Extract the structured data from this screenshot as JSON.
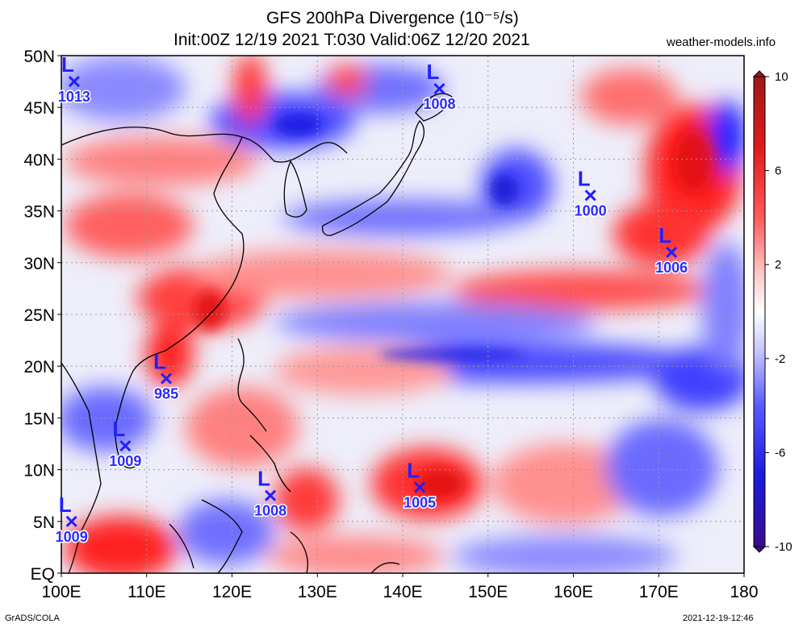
{
  "title": {
    "line1": "GFS 200hPa Divergence (10⁻⁵/s)",
    "line2": "Init:00Z 12/19 2021 T:030 Valid:06Z 12/20 2021"
  },
  "credits": {
    "site": "weather-models.info",
    "software": "GrADS/COLA",
    "timestamp": "2021-12-19-12:46"
  },
  "axes": {
    "lat_labels": [
      "50N",
      "45N",
      "40N",
      "35N",
      "30N",
      "25N",
      "20N",
      "15N",
      "10N",
      "5N",
      "EQ"
    ],
    "lon_labels": [
      "100E",
      "110E",
      "120E",
      "130E",
      "140E",
      "150E",
      "160E",
      "170E",
      "180"
    ]
  },
  "colorbar": {
    "ticks": [
      "10",
      "6",
      "2",
      "-2",
      "-6",
      "-10"
    ],
    "range": [
      -10,
      10
    ],
    "colors": {
      "max": "#b01818",
      "pos": "#ff2a2a",
      "zero": "#ffffff",
      "neg": "#2a2aff",
      "min": "#3a0c8c"
    }
  },
  "lows": [
    {
      "label": "L",
      "pressure": "1013",
      "lon": 101.5,
      "lat": 47.5
    },
    {
      "label": "L",
      "pressure": "1008",
      "lon": 144.3,
      "lat": 46.8
    },
    {
      "label": "L",
      "pressure": "1000",
      "lon": 162.0,
      "lat": 36.5
    },
    {
      "label": "L",
      "pressure": "1006",
      "lon": 171.5,
      "lat": 31.0
    },
    {
      "label": "L",
      "pressure": "985",
      "lon": 112.3,
      "lat": 18.8
    },
    {
      "label": "L",
      "pressure": "1009",
      "lon": 107.5,
      "lat": 12.3
    },
    {
      "label": "L",
      "pressure": "1008",
      "lon": 124.5,
      "lat": 7.5
    },
    {
      "label": "L",
      "pressure": "1005",
      "lon": 142.0,
      "lat": 8.3
    },
    {
      "label": "L",
      "pressure": "1009",
      "lon": 101.2,
      "lat": 5.0
    }
  ],
  "colors": {
    "low_marker": "#2020ff",
    "grid": "#9a9a9a",
    "coast": "#000000"
  }
}
